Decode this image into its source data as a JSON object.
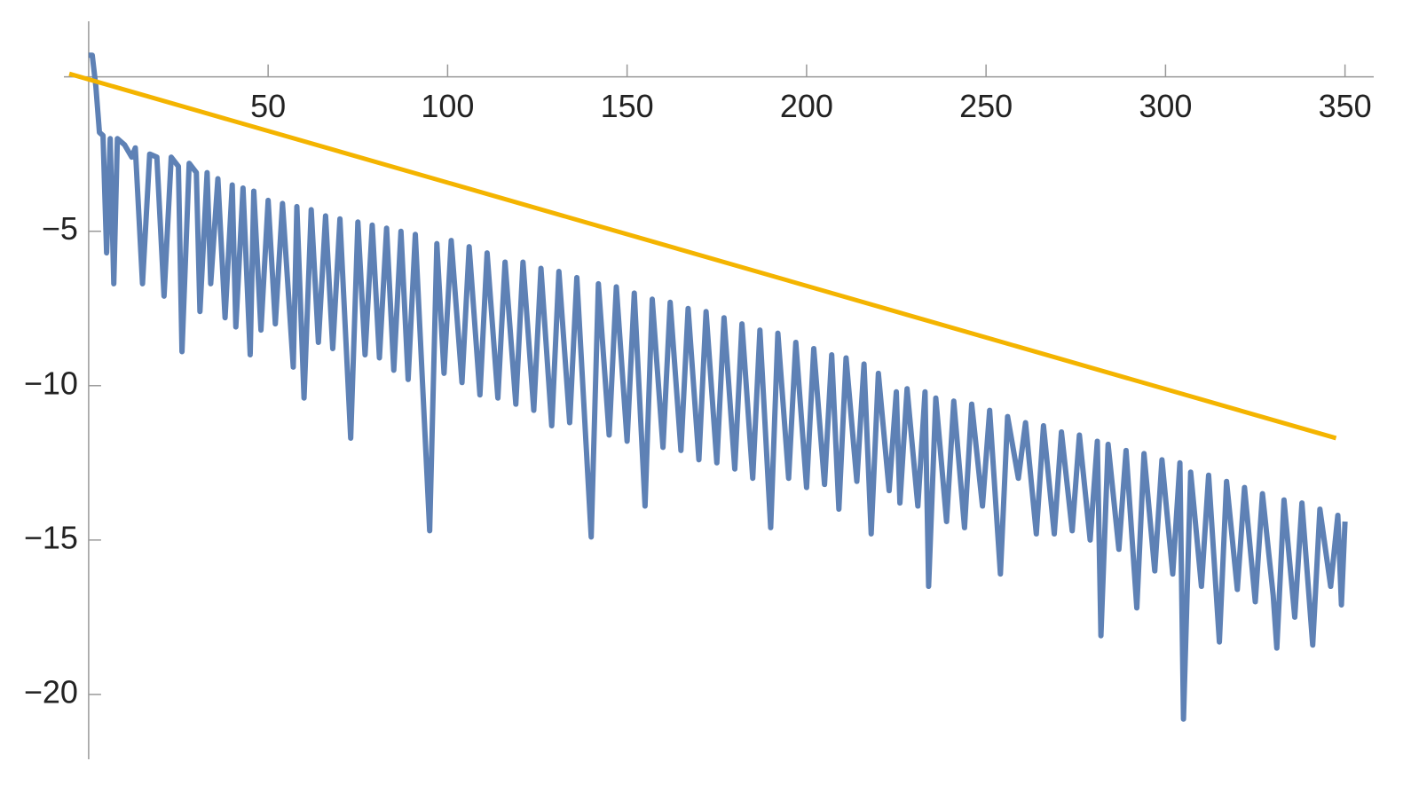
{
  "chart_data": {
    "type": "line",
    "xlim": [
      -6.9,
      358
    ],
    "ylim": [
      -22.1,
      1.8
    ],
    "xticks": [
      50,
      100,
      150,
      200,
      250,
      300,
      350
    ],
    "yticks": [
      {
        "value": -5,
        "label": "−5"
      },
      {
        "value": -10,
        "label": "−10"
      },
      {
        "value": -15,
        "label": "−15"
      },
      {
        "value": -20,
        "label": "−20"
      }
    ],
    "series": [
      {
        "color": "#5e81b5",
        "x": [
          0,
          1,
          2,
          3,
          4,
          5,
          6,
          7,
          8,
          10,
          12,
          13,
          15,
          17,
          19,
          21,
          23,
          25,
          26,
          28,
          30,
          31,
          33,
          34,
          36,
          38,
          40,
          41,
          43,
          45,
          46,
          48,
          50,
          52,
          54,
          57,
          58,
          60,
          62,
          64,
          66,
          68,
          70,
          73,
          75,
          77,
          79,
          81,
          83,
          85,
          87,
          89,
          91,
          95,
          97,
          99,
          101,
          104,
          106,
          109,
          111,
          114,
          116,
          119,
          121,
          124,
          126,
          129,
          131,
          134,
          136,
          140,
          142,
          145,
          147,
          150,
          152,
          155,
          157,
          160,
          162,
          165,
          167,
          170,
          172,
          175,
          177,
          180,
          182,
          185,
          187,
          190,
          192,
          195,
          197,
          200,
          202,
          205,
          207,
          209,
          211,
          214,
          216,
          218,
          220,
          223,
          225,
          226,
          228,
          231,
          233,
          234,
          236,
          239,
          241,
          244,
          246,
          249,
          251,
          254,
          256,
          259,
          261,
          264,
          266,
          269,
          271,
          274,
          276,
          279,
          281,
          282,
          284,
          287,
          289,
          292,
          294,
          297,
          299,
          302,
          304,
          305,
          307,
          310,
          312,
          315,
          317,
          320,
          322,
          325,
          327,
          330,
          331,
          333,
          336,
          338,
          341,
          343,
          346,
          348,
          349,
          350
        ],
        "values": [
          0.7,
          0.7,
          -0.3,
          -1.8,
          -1.9,
          -5.7,
          -2.0,
          -6.7,
          -2.0,
          -2.2,
          -2.6,
          -2.3,
          -6.7,
          -2.5,
          -2.6,
          -7.1,
          -2.6,
          -2.9,
          -8.9,
          -2.8,
          -3.1,
          -7.6,
          -3.1,
          -6.7,
          -3.3,
          -7.8,
          -3.5,
          -8.1,
          -3.6,
          -9.0,
          -3.7,
          -8.2,
          -4.0,
          -8.0,
          -4.1,
          -9.4,
          -4.2,
          -10.4,
          -4.3,
          -8.6,
          -4.5,
          -8.8,
          -4.6,
          -11.7,
          -4.7,
          -9.0,
          -4.8,
          -9.1,
          -4.9,
          -9.5,
          -5.0,
          -9.8,
          -5.1,
          -14.7,
          -5.4,
          -9.6,
          -5.3,
          -9.9,
          -5.5,
          -10.3,
          -5.7,
          -10.4,
          -6.0,
          -10.6,
          -6.0,
          -10.8,
          -6.2,
          -11.3,
          -6.3,
          -11.2,
          -6.5,
          -14.9,
          -6.7,
          -11.6,
          -6.8,
          -11.8,
          -7.0,
          -13.9,
          -7.2,
          -12.0,
          -7.3,
          -12.1,
          -7.5,
          -12.4,
          -7.6,
          -12.5,
          -7.8,
          -12.7,
          -8.0,
          -13.0,
          -8.2,
          -14.6,
          -8.3,
          -13.0,
          -8.6,
          -13.3,
          -8.8,
          -13.2,
          -9.0,
          -14.0,
          -9.1,
          -13.1,
          -9.3,
          -14.8,
          -9.6,
          -13.4,
          -10.2,
          -13.8,
          -10.1,
          -13.9,
          -10.2,
          -16.5,
          -10.4,
          -14.4,
          -10.5,
          -14.6,
          -10.6,
          -13.9,
          -10.8,
          -16.1,
          -11.0,
          -13.0,
          -11.2,
          -14.8,
          -11.3,
          -14.8,
          -11.5,
          -14.7,
          -11.6,
          -15.0,
          -11.8,
          -18.1,
          -11.9,
          -15.3,
          -12.1,
          -17.2,
          -12.2,
          -16.0,
          -12.4,
          -16.1,
          -12.5,
          -20.8,
          -12.8,
          -16.5,
          -12.9,
          -18.3,
          -13.1,
          -16.6,
          -13.3,
          -17.0,
          -13.5,
          -16.8,
          -18.5,
          -13.7,
          -17.5,
          -13.8,
          -18.4,
          -14.0,
          -16.5,
          -14.2,
          -17.1,
          -14.4
        ]
      },
      {
        "color": "#f4b400",
        "x": [
          -5.4,
          347.5
        ],
        "values": [
          0.1,
          -11.7
        ]
      }
    ]
  }
}
